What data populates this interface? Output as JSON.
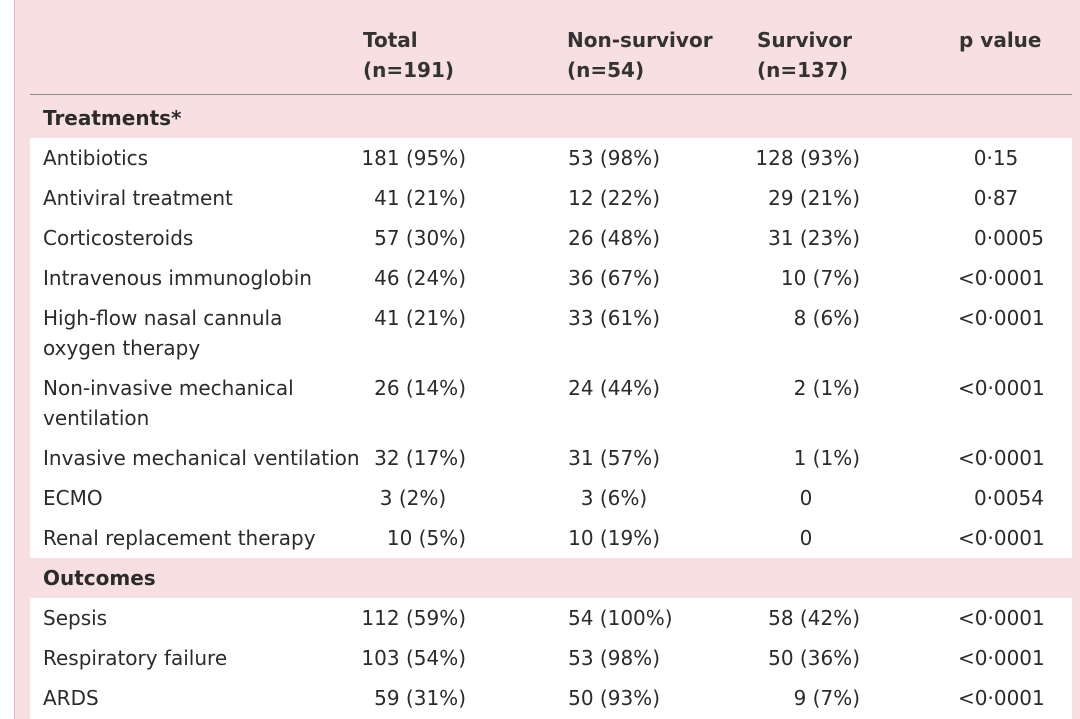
{
  "header": {
    "col_total": [
      "Total",
      "(n=191)"
    ],
    "col_nonsurvivor": [
      "Non-survivor",
      "(n=54)"
    ],
    "col_survivor": [
      "Survivor",
      "(n=137)"
    ],
    "col_p": "p value"
  },
  "sections": {
    "treatments": "Treatments*",
    "outcomes": "Outcomes"
  },
  "treatments": [
    {
      "label": [
        "Antibiotics"
      ],
      "total": "181 (95%)",
      "nons": "53 (98%)",
      "surv": "128 (93%)",
      "p": "0·15"
    },
    {
      "label": [
        "Antiviral treatment"
      ],
      "total": "41 (21%)",
      "nons": "12 (22%)",
      "surv": "29 (21%)",
      "p": "0·87"
    },
    {
      "label": [
        "Corticosteroids"
      ],
      "total": "57 (30%)",
      "nons": "26 (48%)",
      "surv": "31 (23%)",
      "p": "0·0005"
    },
    {
      "label": [
        "Intravenous immunoglobin"
      ],
      "total": "46 (24%)",
      "nons": "36 (67%)",
      "surv": "10 (7%)",
      "p": "<0·0001"
    },
    {
      "label": [
        "High-flow nasal cannula",
        "oxygen therapy"
      ],
      "total": "41 (21%)",
      "nons": "33 (61%)",
      "surv": "8 (6%)",
      "p": "<0·0001"
    },
    {
      "label": [
        "Non-invasive mechanical",
        "ventilation"
      ],
      "total": "26 (14%)",
      "nons": "24 (44%)",
      "surv": "2 (1%)",
      "p": "<0·0001"
    },
    {
      "label": [
        "Invasive mechanical ventilation"
      ],
      "total": "32 (17%)",
      "nons": "31 (57%)",
      "surv": "1 (1%)",
      "p": "<0·0001"
    },
    {
      "label": [
        "ECMO"
      ],
      "total": "3 (2%)",
      "nons": "3 (6%)",
      "surv": "0",
      "p": "0·0054"
    },
    {
      "label": [
        "Renal replacement therapy"
      ],
      "total": "10 (5%)",
      "nons": "10 (19%)",
      "surv": "0",
      "p": "<0·0001"
    }
  ],
  "outcomes": [
    {
      "label": [
        "Sepsis"
      ],
      "total": "112 (59%)",
      "nons": "54 (100%)",
      "surv": "58 (42%)",
      "p": "<0·0001"
    },
    {
      "label": [
        "Respiratory failure"
      ],
      "total": "103 (54%)",
      "nons": "53 (98%)",
      "surv": "50 (36%)",
      "p": "<0·0001"
    },
    {
      "label": [
        "ARDS"
      ],
      "total": "59 (31%)",
      "nons": "50 (93%)",
      "surv": "9 (7%)",
      "p": "<0·0001"
    }
  ]
}
